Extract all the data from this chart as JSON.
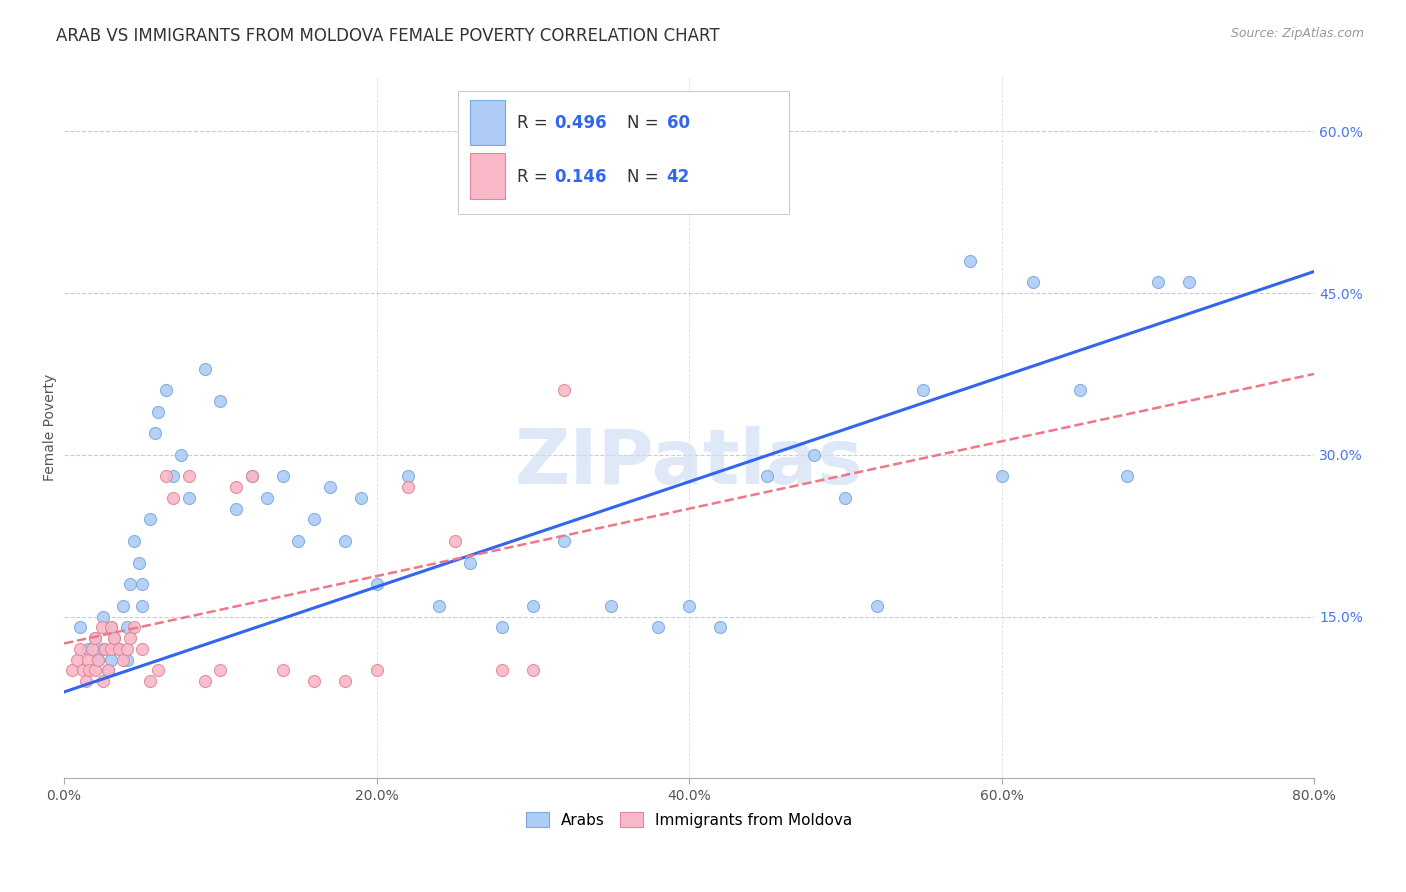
{
  "title": "ARAB VS IMMIGRANTS FROM MOLDOVA FEMALE POVERTY CORRELATION CHART",
  "source": "Source: ZipAtlas.com",
  "ylabel_label": "Female Poverty",
  "right_yticks": [
    "60.0%",
    "45.0%",
    "30.0%",
    "15.0%"
  ],
  "right_ytick_vals": [
    0.6,
    0.45,
    0.3,
    0.15
  ],
  "xlim": [
    0.0,
    0.8
  ],
  "ylim": [
    0.0,
    0.65
  ],
  "legend1_R": "0.496",
  "legend1_N": "60",
  "legend2_R": "0.146",
  "legend2_N": "42",
  "legend_labels": [
    "Arabs",
    "Immigrants from Moldova"
  ],
  "arab_color": "#aeccf5",
  "moldova_color": "#f9b8c8",
  "arab_edge_color": "#7aaae0",
  "moldova_edge_color": "#e08898",
  "arab_line_color": "#3366ee",
  "moldova_line_color": "#ee7788",
  "watermark": "ZIPatlas",
  "watermark_color": "#d0dff5",
  "title_fontsize": 12,
  "source_fontsize": 9,
  "arab_line_x0": 0.0,
  "arab_line_y0": 0.08,
  "arab_line_x1": 0.8,
  "arab_line_y1": 0.47,
  "moldova_line_x0": 0.0,
  "moldova_line_y0": 0.125,
  "moldova_line_x1": 0.8,
  "moldova_line_y1": 0.375,
  "arab_x": [
    0.01,
    0.015,
    0.02,
    0.022,
    0.025,
    0.025,
    0.028,
    0.03,
    0.03,
    0.032,
    0.035,
    0.038,
    0.04,
    0.04,
    0.042,
    0.045,
    0.048,
    0.05,
    0.05,
    0.055,
    0.058,
    0.06,
    0.065,
    0.07,
    0.075,
    0.08,
    0.09,
    0.1,
    0.11,
    0.12,
    0.13,
    0.14,
    0.15,
    0.16,
    0.17,
    0.18,
    0.19,
    0.2,
    0.22,
    0.24,
    0.26,
    0.28,
    0.3,
    0.32,
    0.35,
    0.38,
    0.4,
    0.42,
    0.45,
    0.48,
    0.5,
    0.52,
    0.55,
    0.58,
    0.6,
    0.62,
    0.65,
    0.68,
    0.7,
    0.72
  ],
  "arab_y": [
    0.14,
    0.12,
    0.13,
    0.11,
    0.15,
    0.12,
    0.1,
    0.14,
    0.11,
    0.13,
    0.12,
    0.16,
    0.14,
    0.11,
    0.18,
    0.22,
    0.2,
    0.16,
    0.18,
    0.24,
    0.32,
    0.34,
    0.36,
    0.28,
    0.3,
    0.26,
    0.38,
    0.35,
    0.25,
    0.28,
    0.26,
    0.28,
    0.22,
    0.24,
    0.27,
    0.22,
    0.26,
    0.18,
    0.28,
    0.16,
    0.2,
    0.14,
    0.16,
    0.22,
    0.16,
    0.14,
    0.16,
    0.14,
    0.28,
    0.3,
    0.26,
    0.16,
    0.36,
    0.48,
    0.28,
    0.46,
    0.36,
    0.28,
    0.46,
    0.46
  ],
  "moldova_x": [
    0.005,
    0.008,
    0.01,
    0.012,
    0.014,
    0.015,
    0.016,
    0.018,
    0.02,
    0.02,
    0.022,
    0.024,
    0.025,
    0.026,
    0.028,
    0.03,
    0.03,
    0.032,
    0.035,
    0.038,
    0.04,
    0.042,
    0.045,
    0.05,
    0.055,
    0.06,
    0.065,
    0.07,
    0.08,
    0.09,
    0.1,
    0.11,
    0.12,
    0.14,
    0.16,
    0.18,
    0.2,
    0.22,
    0.25,
    0.28,
    0.3,
    0.32
  ],
  "moldova_y": [
    0.1,
    0.11,
    0.12,
    0.1,
    0.09,
    0.11,
    0.1,
    0.12,
    0.1,
    0.13,
    0.11,
    0.14,
    0.09,
    0.12,
    0.1,
    0.12,
    0.14,
    0.13,
    0.12,
    0.11,
    0.12,
    0.13,
    0.14,
    0.12,
    0.09,
    0.1,
    0.28,
    0.26,
    0.28,
    0.09,
    0.1,
    0.27,
    0.28,
    0.1,
    0.09,
    0.09,
    0.1,
    0.27,
    0.22,
    0.1,
    0.1,
    0.36
  ]
}
